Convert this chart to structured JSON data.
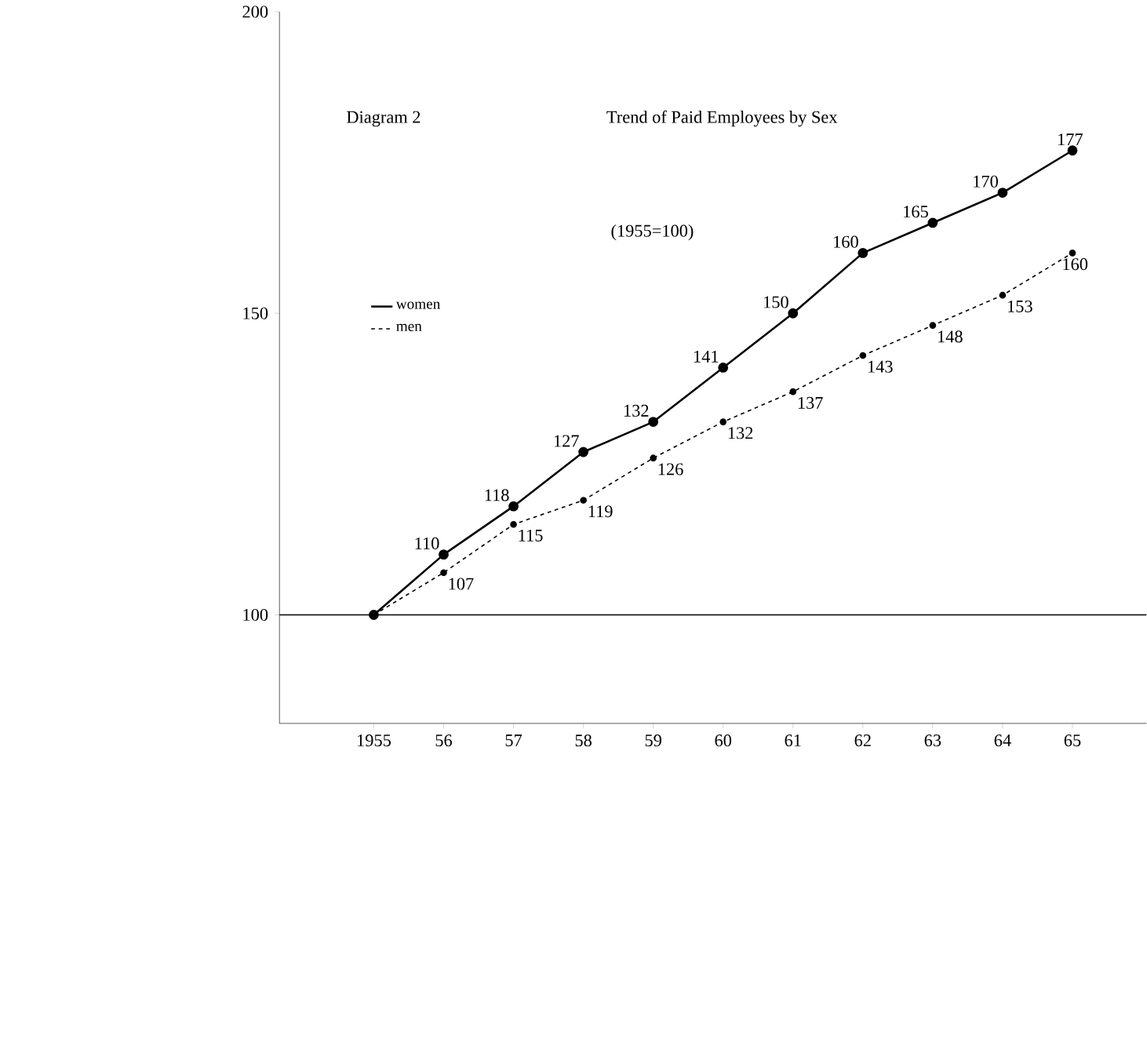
{
  "chart_data": {
    "type": "line",
    "title": "Trend of Paid Employees by Sex",
    "subtitle": "(1955=100)",
    "annotations": [
      "Diagram 2"
    ],
    "categories": [
      "1955",
      "56",
      "57",
      "58",
      "59",
      "60",
      "61",
      "62",
      "63",
      "64",
      "65"
    ],
    "series": [
      {
        "name": "women",
        "color": "#000000",
        "line_style": "solid",
        "values": [
          100,
          110,
          118,
          127,
          132,
          141,
          150,
          160,
          165,
          170,
          177
        ],
        "value_labels": [
          null,
          "110",
          "118",
          "127",
          "132",
          "141",
          "150",
          "160",
          "165",
          "170",
          "177"
        ]
      },
      {
        "name": "men",
        "color": "#000000",
        "line_style": "dashed",
        "values": [
          100,
          107,
          115,
          119,
          126,
          132,
          137,
          143,
          148,
          153,
          160
        ],
        "value_labels": [
          null,
          "107",
          "115",
          "119",
          "126",
          "132",
          "137",
          "143",
          "148",
          "153",
          "160"
        ]
      }
    ],
    "ylim": [
      82,
      200
    ],
    "yticks": [
      100,
      150,
      200
    ],
    "ref_lines": [
      {
        "axis": "y",
        "value": 100,
        "color": "#000000"
      }
    ],
    "marker": "circle",
    "legend": "left",
    "grid": false
  }
}
